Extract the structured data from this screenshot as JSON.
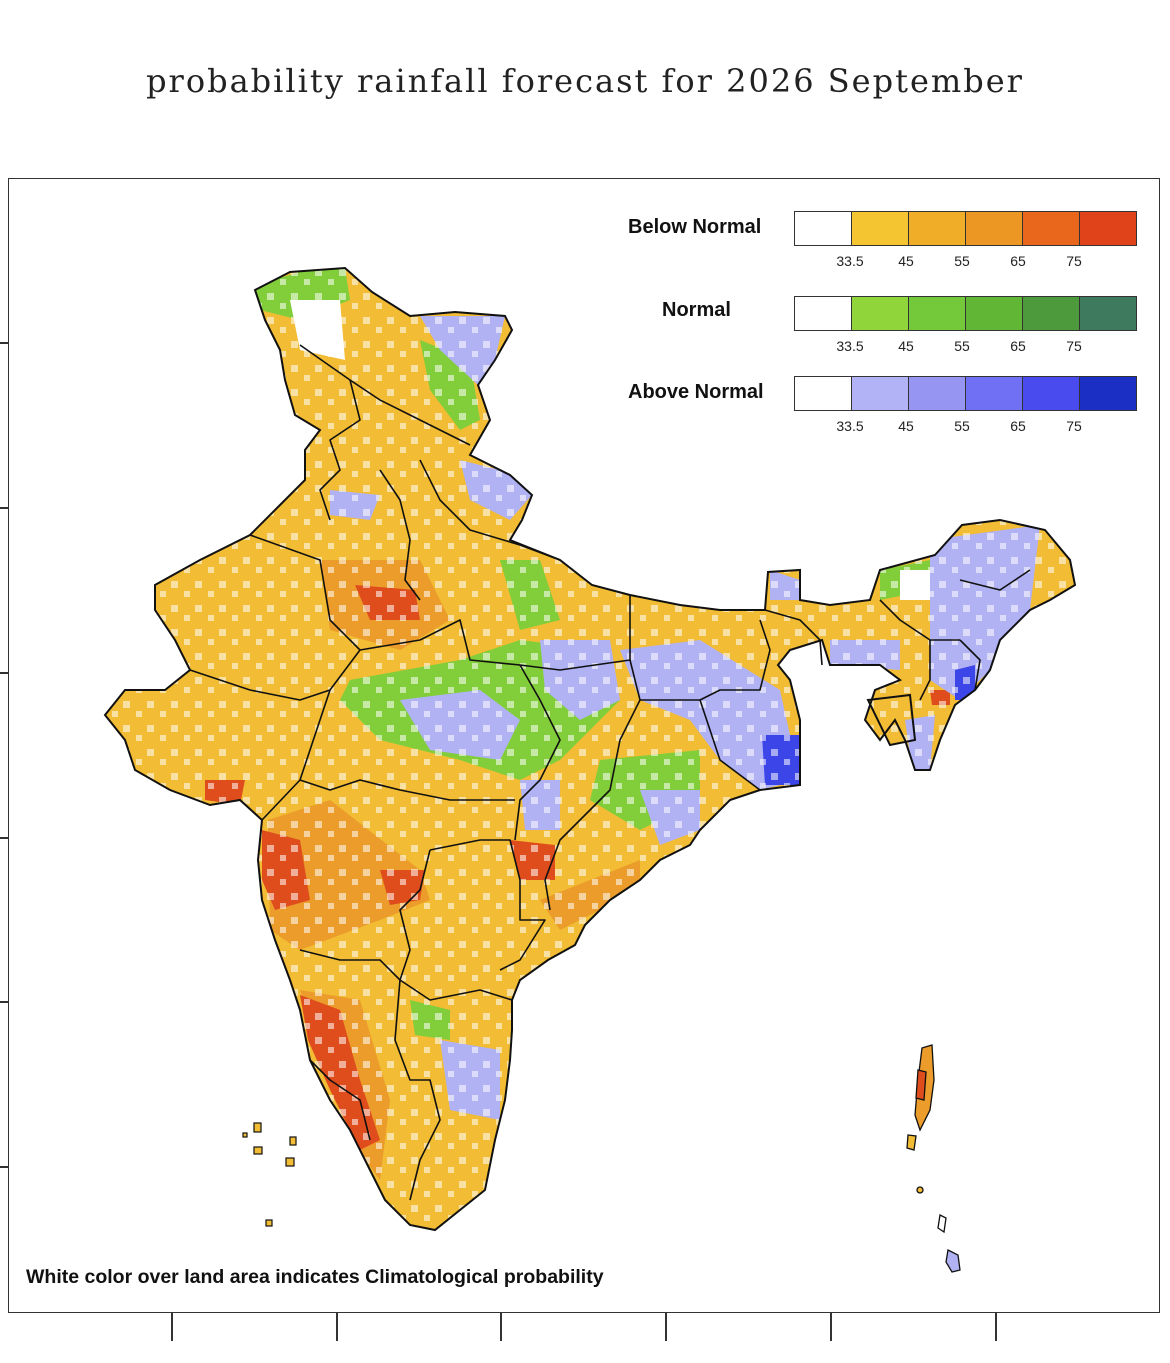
{
  "title": "probability rainfall forecast for 2026 September",
  "legend": [
    {
      "label": "Below Normal",
      "colors": [
        "#ffffff",
        "#f4c531",
        "#f0ad28",
        "#ec9624",
        "#e8671c",
        "#e0431a"
      ],
      "ticks": [
        "33.5",
        "45",
        "55",
        "65",
        "75"
      ]
    },
    {
      "label": "Normal",
      "colors": [
        "#ffffff",
        "#90d53a",
        "#74c93a",
        "#62b636",
        "#4d9a3c",
        "#3e7a5e"
      ],
      "ticks": [
        "33.5",
        "45",
        "55",
        "65",
        "75"
      ]
    },
    {
      "label": "Above Normal",
      "colors": [
        "#ffffff",
        "#b2b3f6",
        "#9696f2",
        "#6f70f3",
        "#4a4bef",
        "#1c2fc4"
      ],
      "ticks": [
        "33.5",
        "45",
        "55",
        "65",
        "75"
      ]
    }
  ],
  "note": "White color over land area indicates Climatological probability",
  "map_colors": {
    "below_main": "#f2bd34",
    "below_mid": "#eb9c2a",
    "below_high": "#df4d1c",
    "normal": "#82cd3a",
    "above": "#b1b2f4",
    "above_high": "#3b45e8",
    "border": "#111111"
  }
}
